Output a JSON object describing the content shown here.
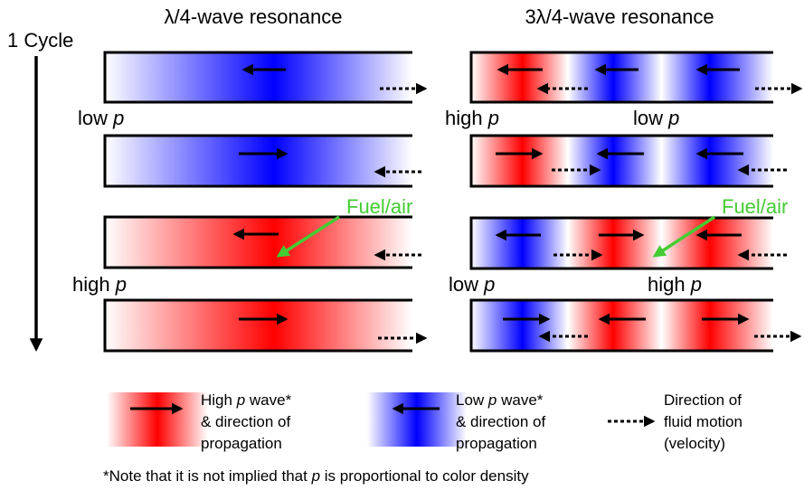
{
  "titles": {
    "left": "λ/4-wave resonance",
    "right": "3λ/4-wave resonance"
  },
  "cycle_label": "1 Cycle",
  "labels": {
    "left_low": "low",
    "left_high": "high",
    "right_high_top": "high",
    "right_low_top": "low",
    "right_low_bottom": "low",
    "right_high_bottom": "high",
    "p": "p"
  },
  "fuel_air": "Fuel/air",
  "legend": {
    "high_line1_pre": "High ",
    "high_line1_p": "p",
    "high_line1_post": " wave*",
    "high_line2": "& direction of",
    "high_line3": "propagation",
    "low_line1_pre": "Low ",
    "low_line1_p": "p",
    "low_line1_post": " wave*",
    "low_line2": "& direction of",
    "low_line3": "propagation",
    "dir_line1": "Direction of",
    "dir_line2": "fluid motion",
    "dir_line3": "(velocity)"
  },
  "footnote": {
    "pre": "*Note that it is not implied that ",
    "p": "p",
    "post": " is proportional to color density"
  },
  "colors": {
    "high": "#ff0000",
    "low": "#0000ff",
    "fuel": "#44cc33"
  }
}
